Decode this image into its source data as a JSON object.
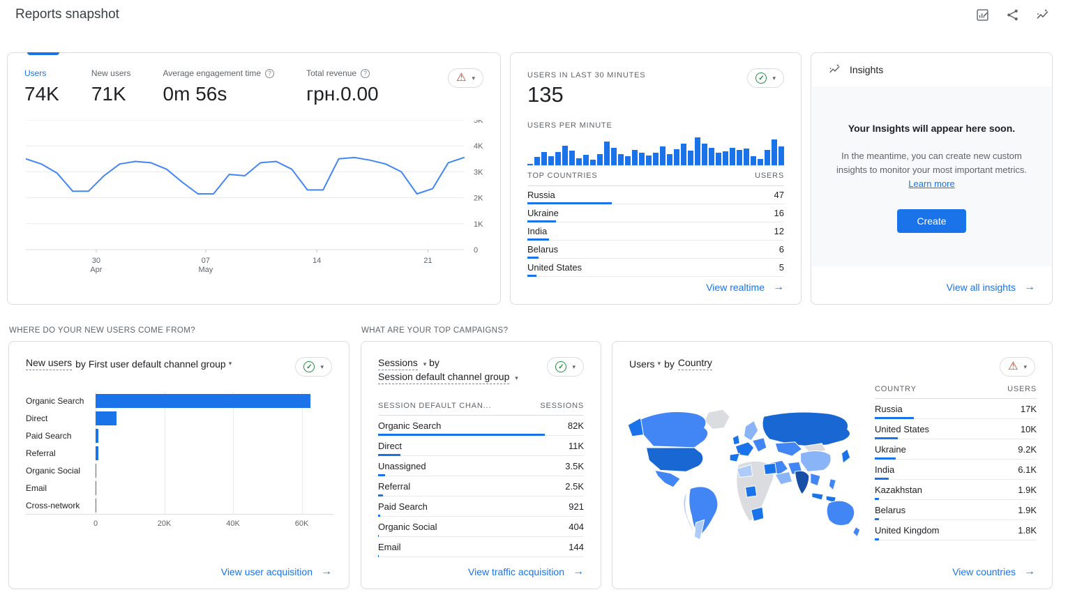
{
  "colors": {
    "accent": "#1a73e8",
    "chart_blue": "#4285f4",
    "link": "#1a73e8",
    "green": "#1e8e3e",
    "warning": "#b3412c",
    "grid": "#e8eaed",
    "border": "#dadce0",
    "text": "#202124",
    "muted": "#5f6368"
  },
  "header": {
    "title": "Reports snapshot"
  },
  "overview": {
    "metrics": [
      {
        "label": "Users",
        "value": "74K",
        "selected": true,
        "help": false
      },
      {
        "label": "New users",
        "value": "71K",
        "selected": false,
        "help": false
      },
      {
        "label": "Average engagement time",
        "value": "0m 56s",
        "selected": false,
        "help": true
      },
      {
        "label": "Total revenue",
        "value": "грн.0.00",
        "selected": false,
        "help": true
      }
    ],
    "chart_data": {
      "type": "line",
      "series_name": "Users per day",
      "values": [
        3500,
        3300,
        2950,
        2250,
        2250,
        2850,
        3300,
        3400,
        3350,
        3100,
        2600,
        2150,
        2150,
        2900,
        2850,
        3350,
        3400,
        3100,
        2300,
        2300,
        3500,
        3550,
        3450,
        3300,
        3000,
        2150,
        2350,
        3350,
        3550
      ],
      "y_max": 5000,
      "y_ticks": [
        "5K",
        "4K",
        "3K",
        "2K",
        "1K",
        "0"
      ],
      "x_ticks": [
        {
          "pos": 4.5,
          "label": "30",
          "sub": "Apr"
        },
        {
          "pos": 11.5,
          "label": "07",
          "sub": "May"
        },
        {
          "pos": 18.6,
          "label": "14"
        },
        {
          "pos": 25.7,
          "label": "21"
        }
      ],
      "grid": true
    }
  },
  "realtime": {
    "title": "USERS IN LAST 30 MINUTES",
    "value": "135",
    "per_minute_label": "USERS PER MINUTE",
    "chart_data": {
      "type": "bar",
      "label": "users per minute",
      "values": [
        4,
        26,
        42,
        30,
        42,
        62,
        46,
        22,
        34,
        18,
        36,
        76,
        56,
        36,
        28,
        50,
        40,
        32,
        40,
        60,
        36,
        52,
        68,
        46,
        88,
        70,
        56,
        40,
        44,
        56,
        48,
        54,
        30,
        20,
        48,
        82,
        60
      ]
    },
    "countries": {
      "headers": [
        "TOP COUNTRIES",
        "USERS"
      ],
      "max": 47,
      "rows": [
        {
          "name": "Russia",
          "value": 47
        },
        {
          "name": "Ukraine",
          "value": 16
        },
        {
          "name": "India",
          "value": 12
        },
        {
          "name": "Belarus",
          "value": 6
        },
        {
          "name": "United States",
          "value": 5
        }
      ]
    },
    "footer_link": "View realtime"
  },
  "insights": {
    "title": "Insights",
    "headline": "Your Insights will appear here soon.",
    "body": "In the meantime, you can create new custom insights to monitor your most important metrics.",
    "learn_more": "Learn more",
    "create_button": "Create",
    "footer_link": "View all insights"
  },
  "acquisition": {
    "section_title": "WHERE DO YOUR NEW USERS COME FROM?",
    "title_metric": "New users",
    "title_rest": "by First user default channel group",
    "chart_data": {
      "type": "bar",
      "orientation": "horizontal",
      "categories": [
        "Organic Search",
        "Direct",
        "Paid Search",
        "Referral",
        "Organic Social",
        "Email",
        "Cross-network"
      ],
      "values": [
        62500,
        6000,
        900,
        900,
        250,
        60,
        10
      ],
      "x_max": 67000,
      "x_ticks": [
        {
          "v": 0,
          "label": "0"
        },
        {
          "v": 20000,
          "label": "20K"
        },
        {
          "v": 40000,
          "label": "40K"
        },
        {
          "v": 60000,
          "label": "60K"
        }
      ]
    },
    "footer_link": "View user acquisition"
  },
  "campaigns": {
    "section_title": "WHAT ARE YOUR TOP CAMPAIGNS?",
    "title_metric": "Sessions",
    "title_by": "by",
    "title_dimension": "Session default channel group",
    "table": {
      "headers": [
        "SESSION DEFAULT CHAN...",
        "SESSIONS"
      ],
      "max": 82000,
      "rows": [
        {
          "name": "Organic Search",
          "value": 82000,
          "display": "82K"
        },
        {
          "name": "Direct",
          "value": 11000,
          "display": "11K"
        },
        {
          "name": "Unassigned",
          "value": 3500,
          "display": "3.5K"
        },
        {
          "name": "Referral",
          "value": 2500,
          "display": "2.5K"
        },
        {
          "name": "Paid Search",
          "value": 921,
          "display": "921"
        },
        {
          "name": "Organic Social",
          "value": 404,
          "display": "404"
        },
        {
          "name": "Email",
          "value": 144,
          "display": "144"
        }
      ]
    },
    "footer_link": "View traffic acquisition"
  },
  "countries_card": {
    "title_metric": "Users",
    "title_by": "by",
    "title_dimension": "Country",
    "table": {
      "headers": [
        "COUNTRY",
        "USERS"
      ],
      "max": 17000,
      "rows": [
        {
          "name": "Russia",
          "value": 17000,
          "display": "17K"
        },
        {
          "name": "United States",
          "value": 10000,
          "display": "10K"
        },
        {
          "name": "Ukraine",
          "value": 9200,
          "display": "9.2K"
        },
        {
          "name": "India",
          "value": 6100,
          "display": "6.1K"
        },
        {
          "name": "Kazakhstan",
          "value": 1900,
          "display": "1.9K"
        },
        {
          "name": "Belarus",
          "value": 1900,
          "display": "1.9K"
        },
        {
          "name": "United Kingdom",
          "value": 1800,
          "display": "1.8K"
        }
      ]
    },
    "footer_link": "View countries"
  }
}
